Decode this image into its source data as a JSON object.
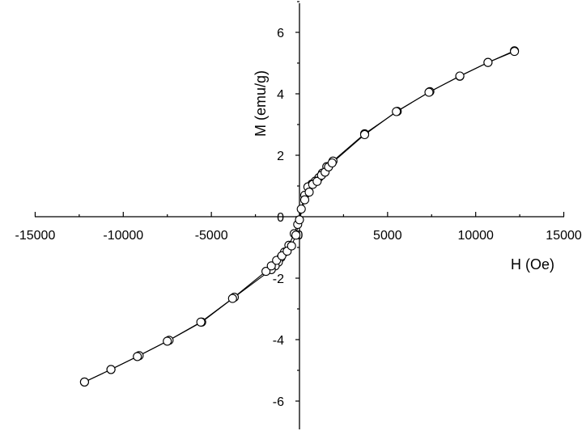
{
  "chart_data": {
    "type": "scatter",
    "title": "",
    "xlabel": "H (Oe)",
    "ylabel": "M (emu/g)",
    "xlim": [
      -15000,
      15000
    ],
    "ylim": [
      -7,
      7
    ],
    "x_ticks": [
      -15000,
      -10000,
      -5000,
      0,
      5000,
      10000,
      15000
    ],
    "x_tick_labels": [
      "-15000",
      "-10000",
      "-5000",
      "0",
      "5000",
      "10000",
      "15000"
    ],
    "y_ticks": [
      -6,
      -4,
      -2,
      0,
      2,
      4,
      6
    ],
    "y_tick_labels": [
      "-6",
      "-4",
      "-2",
      "0",
      "2",
      "4",
      "6"
    ],
    "grid": false,
    "axes_cross_at_origin": true,
    "marker": "open-circle",
    "line_color": "#000000",
    "series": [
      {
        "points": [
          [
            12200,
            5.4
          ],
          [
            10700,
            5.02
          ],
          [
            9100,
            4.57
          ],
          [
            7400,
            4.07
          ],
          [
            5550,
            3.43
          ],
          [
            3700,
            2.7
          ],
          [
            1900,
            1.81
          ],
          [
            1550,
            1.63
          ],
          [
            1300,
            1.42
          ],
          [
            1100,
            1.27
          ],
          [
            900,
            1.16
          ],
          [
            700,
            1.06
          ],
          [
            480,
            0.97
          ],
          [
            300,
            0.7
          ],
          [
            100,
            0.25
          ],
          [
            -100,
            -0.25
          ],
          [
            -300,
            -0.55
          ],
          [
            -600,
            -0.93
          ],
          [
            -850,
            -1.15
          ],
          [
            -1050,
            -1.33
          ],
          [
            -1200,
            -1.48
          ],
          [
            -1380,
            -1.6
          ],
          [
            -1600,
            -1.72
          ],
          [
            -3700,
            -2.62
          ],
          [
            -5550,
            -3.43
          ],
          [
            -7400,
            -4.02
          ],
          [
            -9100,
            -4.52
          ],
          [
            -10700,
            -4.97
          ],
          [
            -12200,
            -5.38
          ]
        ]
      },
      {
        "points": [
          [
            -12200,
            -5.38
          ],
          [
            -10700,
            -4.97
          ],
          [
            -9200,
            -4.55
          ],
          [
            -7500,
            -4.05
          ],
          [
            -5600,
            -3.43
          ],
          [
            -3800,
            -2.66
          ],
          [
            -1900,
            -1.78
          ],
          [
            -1600,
            -1.6
          ],
          [
            -1300,
            -1.42
          ],
          [
            -1000,
            -1.27
          ],
          [
            -700,
            -1.12
          ],
          [
            -450,
            -0.95
          ],
          [
            -200,
            -0.6
          ],
          [
            0,
            -0.1
          ],
          [
            300,
            0.55
          ],
          [
            550,
            0.8
          ],
          [
            750,
            1.05
          ],
          [
            1000,
            1.15
          ],
          [
            1250,
            1.35
          ],
          [
            1450,
            1.45
          ],
          [
            1650,
            1.62
          ],
          [
            1850,
            1.75
          ],
          [
            3700,
            2.67
          ],
          [
            5500,
            3.42
          ],
          [
            7350,
            4.05
          ],
          [
            9100,
            4.58
          ],
          [
            10700,
            5.02
          ],
          [
            12200,
            5.38
          ]
        ]
      }
    ]
  }
}
